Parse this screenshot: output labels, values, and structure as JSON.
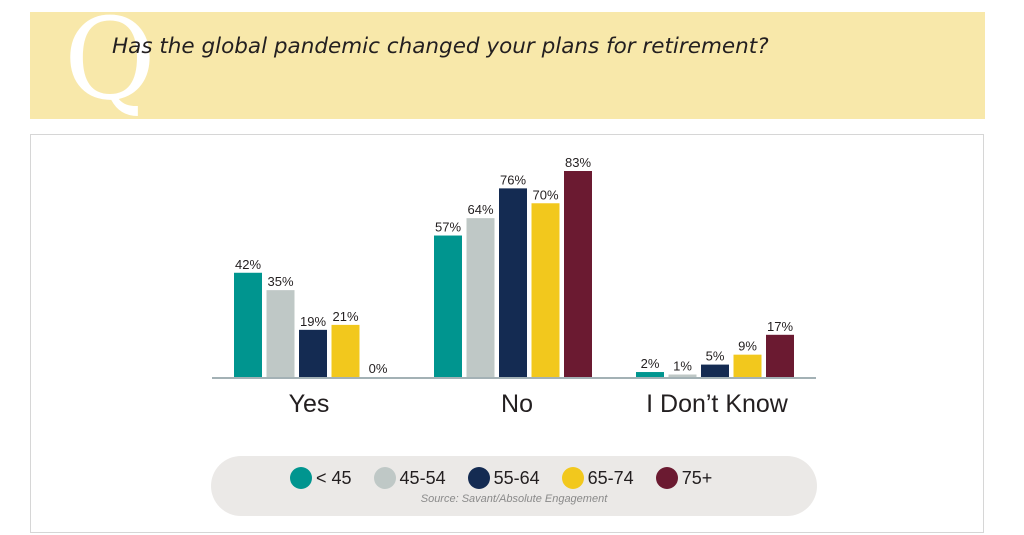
{
  "header": {
    "q_letter": "Q",
    "question": "Has the global pandemic changed your plans for retirement?"
  },
  "chart_data": {
    "type": "bar",
    "title": "Has the global pandemic changed your plans for retirement?",
    "categories": [
      "Yes",
      "No",
      "I Don’t Know"
    ],
    "series": [
      {
        "name": "< 45",
        "color": "#00958f",
        "values": [
          42,
          57,
          2
        ],
        "labels": [
          "42%",
          "57%",
          "2%"
        ]
      },
      {
        "name": "45-54",
        "color": "#bfc8c6",
        "values": [
          35,
          64,
          1
        ],
        "labels": [
          "35%",
          "64%",
          "1%"
        ]
      },
      {
        "name": "55-64",
        "color": "#142b52",
        "values": [
          19,
          76,
          5
        ],
        "labels": [
          "19%",
          "76%",
          "5%"
        ]
      },
      {
        "name": "65-74",
        "color": "#f2c81d",
        "values": [
          21,
          70,
          9
        ],
        "labels": [
          "21%",
          "70%",
          "9%"
        ]
      },
      {
        "name": "75+",
        "color": "#6b1a31",
        "values": [
          0,
          83,
          17
        ],
        "labels": [
          "0%",
          "83%",
          "17%"
        ]
      }
    ],
    "ylim": [
      0,
      83
    ],
    "grid": false,
    "legend_position": "bottom",
    "source": "Source: Savant/Absolute Engagement"
  }
}
